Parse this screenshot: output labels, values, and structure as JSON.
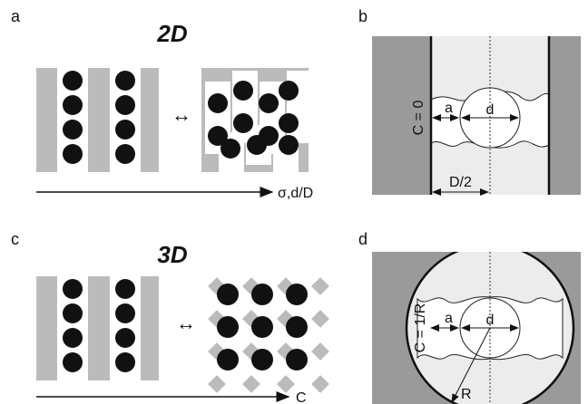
{
  "panels": [
    {
      "label": "a",
      "title": "2D",
      "axis_label": "σ,d/D"
    },
    {
      "label": "b",
      "wall_label": "C = 0",
      "a_label": "a",
      "d_label": "d",
      "width_label": "D/2"
    },
    {
      "label": "c",
      "title": "3D",
      "axis_label": "C"
    },
    {
      "label": "d",
      "wall_label": "C = 1/R",
      "a_label": "a",
      "d_label": "d",
      "radius_label": "R"
    }
  ]
}
